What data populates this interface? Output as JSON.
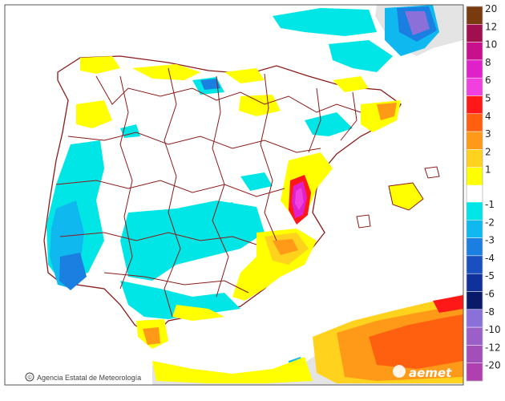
{
  "map": {
    "credit": "Agencia Estatal de Meteorología",
    "brand": "aemet",
    "copyright_symbol": "©"
  },
  "colors": {
    "sea": "#ffffff",
    "land_outside": "#e4e4e4",
    "border_line": "#8b1a1a"
  },
  "legend": {
    "positive": [
      {
        "label": "20",
        "color": "#7a3a10"
      },
      {
        "label": "12",
        "color": "#a01050"
      },
      {
        "label": "10",
        "color": "#c8108c"
      },
      {
        "label": "8",
        "color": "#e020c8"
      },
      {
        "label": "6",
        "color": "#f040e0"
      },
      {
        "label": "5",
        "color": "#ff1818"
      },
      {
        "label": "4",
        "color": "#ff6010"
      },
      {
        "label": "3",
        "color": "#ff9a18"
      },
      {
        "label": "2",
        "color": "#ffd21e"
      },
      {
        "label": "1",
        "color": "#ffff00"
      }
    ],
    "negative": [
      {
        "label": "-1",
        "color": "#00e6e6"
      },
      {
        "label": "-2",
        "color": "#10b8f0"
      },
      {
        "label": "-3",
        "color": "#1a7fe0"
      },
      {
        "label": "-4",
        "color": "#1a4fc0"
      },
      {
        "label": "-5",
        "color": "#10309a"
      },
      {
        "label": "-6",
        "color": "#0a1a6a"
      },
      {
        "label": "-8",
        "color": "#8a70d8"
      },
      {
        "label": "-10",
        "color": "#9a60c8"
      },
      {
        "label": "-12",
        "color": "#a050b8"
      },
      {
        "label": "-20",
        "color": "#b040b0"
      }
    ]
  }
}
